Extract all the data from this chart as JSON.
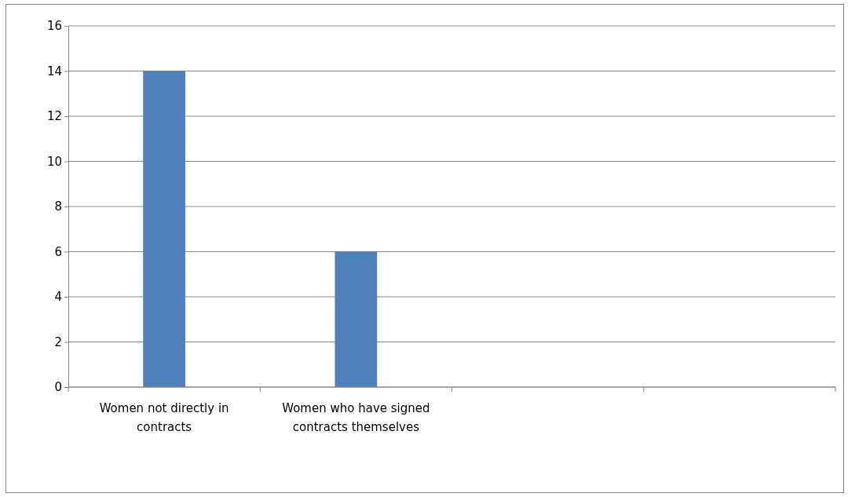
{
  "chart_data": {
    "type": "bar",
    "categories": [
      "Women not directly in contracts",
      "Women who have signed contracts themselves",
      null,
      null
    ],
    "values": [
      14,
      6,
      null,
      null
    ],
    "color": "#4f81bd",
    "ylim": [
      0,
      16
    ],
    "yticks": [
      0,
      2,
      4,
      6,
      8,
      10,
      12,
      14,
      16
    ],
    "grid": "y"
  }
}
